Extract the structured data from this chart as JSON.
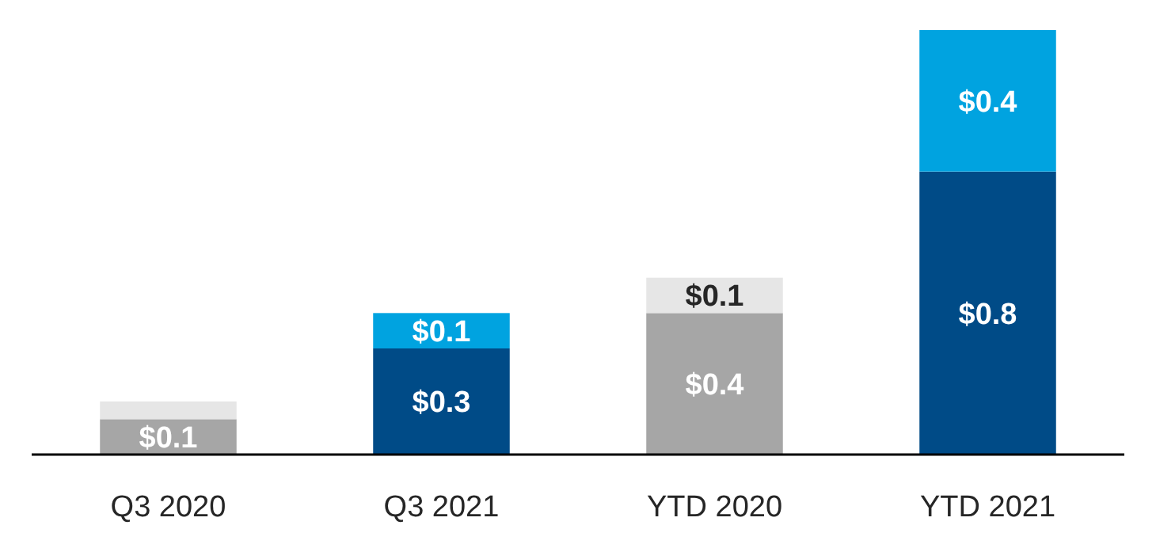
{
  "chart_data": {
    "type": "bar",
    "stacked": true,
    "categories": [
      "Q3 2020",
      "Q3 2021",
      "YTD 2020",
      "YTD 2021"
    ],
    "series": [
      {
        "colors": [
          "#a6a6a6",
          "#004b87",
          "#a6a6a6",
          "#004b87"
        ],
        "values": [
          0.1,
          0.3,
          0.4,
          0.8
        ],
        "value_labels": [
          "$0.1",
          "$0.3",
          "$0.4",
          "$0.8"
        ]
      },
      {
        "colors": [
          "#e6e6e6",
          "#00a3e0",
          "#e6e6e6",
          "#00a3e0"
        ],
        "values": [
          0.05,
          0.1,
          0.1,
          0.4
        ],
        "value_labels": [
          null,
          "$0.1",
          "$0.1",
          "$0.4"
        ]
      }
    ]
  }
}
